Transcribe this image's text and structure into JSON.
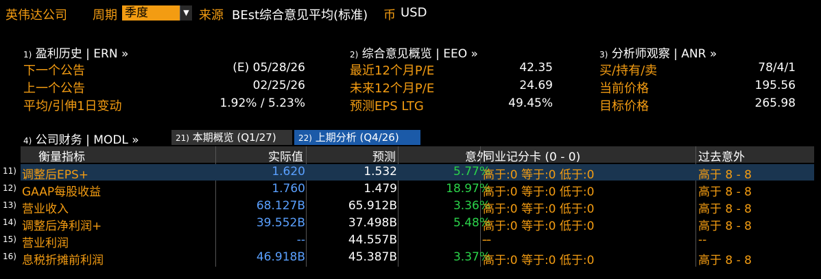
{
  "header": {
    "company": "英伟达公司",
    "period_label": "周期",
    "period_value": "季度",
    "source_label": "来源",
    "source_value": "BEst综合意见平均(标准)",
    "currency_label": "币",
    "currency_value": "USD"
  },
  "earnings_history": {
    "num": "1)",
    "title": "盈利历史 | ERN »",
    "rows": [
      {
        "label": "下一个公告",
        "value": "(E)  05/28/26"
      },
      {
        "label": "上一个公告",
        "value": "02/25/26"
      },
      {
        "label": "平均/引伸1日变动",
        "value": "1.92% / 5.23%"
      }
    ]
  },
  "consensus": {
    "num": "2)",
    "title": "综合意见概览 | EEO »",
    "rows": [
      {
        "label": "最近12个月P/E",
        "value": "42.35"
      },
      {
        "label": "未来12个月P/E",
        "value": "24.69"
      },
      {
        "label": "预测EPS LTG",
        "value": "49.45%"
      }
    ]
  },
  "analyst": {
    "num": "3)",
    "title": "分析师观察 | ANR »",
    "rows": [
      {
        "label": "买/持有/卖",
        "value": "78/4/1"
      },
      {
        "label": "当前价格",
        "value": "195.56"
      },
      {
        "label": "目标价格",
        "value": "265.98"
      }
    ]
  },
  "financials": {
    "num": "4)",
    "title": "公司财务 | MODL »",
    "tabs": [
      {
        "num": "21)",
        "label": "本期概览 (Q1/27)"
      },
      {
        "num": "22)",
        "label": "上期分析 (Q4/26)"
      }
    ]
  },
  "table": {
    "headers": {
      "metric": "衡量指标",
      "actual": "实际值",
      "estimate": "预测",
      "surprise": "意外",
      "scorecard": "同业记分卡 (0 - 0)",
      "past": "过去意外"
    },
    "rows": [
      {
        "num": "11)",
        "metric": "调整后EPS+",
        "actual": "1.620",
        "estimate": "1.532",
        "surprise": "5.77%",
        "score": "高于:0 等于:0 低于:0",
        "past": "高于 8 - 8"
      },
      {
        "num": "12)",
        "metric": "GAAP每股收益",
        "actual": "1.760",
        "estimate": "1.479",
        "surprise": "18.97%",
        "score": "高于:0 等于:0 低于:0",
        "past": "高于 8 - 8"
      },
      {
        "num": "13)",
        "metric": "营业收入",
        "actual": "68.127B",
        "estimate": "65.912B",
        "surprise": "3.36%",
        "score": "高于:0 等于:0 低于:0",
        "past": "高于 8 - 8"
      },
      {
        "num": "14)",
        "metric": "调整后净利润+",
        "actual": "39.552B",
        "estimate": "37.498B",
        "surprise": "5.48%",
        "score": "高于:0 等于:0 低于:0",
        "past": "高于 8 - 8"
      },
      {
        "num": "15)",
        "metric": "营业利润",
        "actual": "--",
        "estimate": "44.557B",
        "surprise": "--",
        "score": "--",
        "past": "--"
      },
      {
        "num": "16)",
        "metric": "息税折摊前利润",
        "actual": "46.918B",
        "estimate": "45.387B",
        "surprise": "3.37%",
        "score": "高于:0 等于:0 低于:0",
        "past": "高于 8 - 8"
      }
    ]
  },
  "colors": {
    "accent": "#f39c12",
    "positive": "#2bd34a",
    "actual": "#5aa0ff",
    "selected_row": "#1a3550"
  }
}
